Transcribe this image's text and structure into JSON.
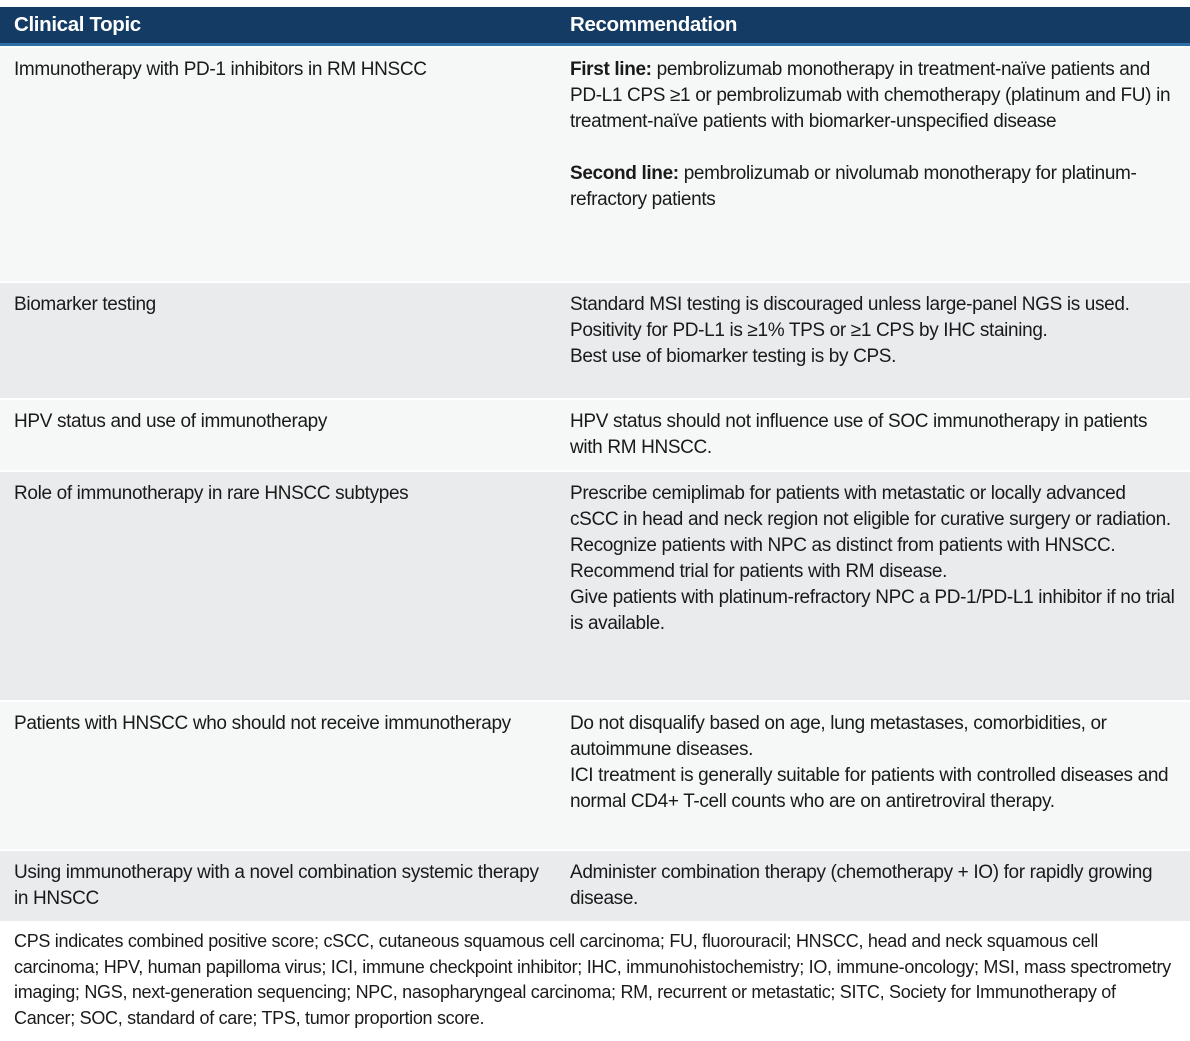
{
  "colors": {
    "header_bg": "#143b64",
    "header_accent": "#2e6ea6",
    "header_text": "#ffffff",
    "row_light": "#f6f7f7",
    "row_gray": "#e9ebec",
    "text": "#1a1a1a"
  },
  "table": {
    "headers": {
      "topic": "Clinical Topic",
      "recommendation": "Recommendation"
    },
    "rows": [
      {
        "topic": "Immunotherapy with PD-1 inhibitors in RM HNSCC",
        "rec": {
          "p1_label": "First line:",
          "p1_text": "pembrolizumab monotherapy in treatment-naïve patients and PD-L1 CPS ≥1 or pembrolizumab with chemotherapy (platinum and FU) in treatment-naïve patients with biomarker-unspecified disease",
          "p2_label": "Second line:",
          "p2_text": "pembrolizumab or nivolumab monotherapy for platinum-refractory patients"
        }
      },
      {
        "topic": "Biomarker testing",
        "rec": {
          "lines": [
            "Standard MSI testing is discouraged unless large-panel NGS is used.",
            "Positivity for PD-L1 is ≥1% TPS or ≥1 CPS by IHC staining.",
            "Best use of biomarker testing is by CPS."
          ]
        }
      },
      {
        "topic": "HPV status and use of immunotherapy",
        "rec": {
          "lines": [
            "HPV status should not influence use of SOC immunotherapy in patients with RM HNSCC."
          ]
        }
      },
      {
        "topic": "Role of immunotherapy in rare HNSCC subtypes",
        "rec": {
          "lines": [
            "Prescribe cemiplimab for patients with metastatic or locally advanced cSCC in head and neck region not eligible for curative surgery or radiation.",
            "Recognize patients with NPC as distinct from patients with HNSCC.",
            "Recommend trial for patients with RM disease.",
            "Give patients with platinum-refractory NPC a PD-1/PD-L1 inhibitor if no trial is available."
          ]
        }
      },
      {
        "topic": "Patients with HNSCC who should not receive immunotherapy",
        "rec": {
          "lines": [
            "Do not disqualify based on age, lung metastases, comorbidities, or autoimmune diseases.",
            "ICI treatment is generally suitable for patients with controlled diseases and normal CD4+ T-cell counts who are on antiretroviral therapy."
          ]
        }
      },
      {
        "topic": "Using immunotherapy with a novel combination systemic therapy in HNSCC",
        "rec": {
          "lines": [
            "Administer combination therapy (chemotherapy + IO) for rapidly growing disease."
          ]
        }
      }
    ]
  },
  "footnote": "CPS indicates combined positive score; cSCC, cutaneous squamous cell carcinoma; FU, fluorouracil; HNSCC, head and neck squamous cell carcinoma; HPV, human papilloma virus; ICI, immune checkpoint inhibitor; IHC, immunohistochemistry; IO, immune-oncology; MSI, mass spectrometry imaging; NGS, next-generation sequencing; NPC, nasopharyngeal carcinoma; RM, recurrent or metastatic; SITC, Society for Immunotherapy of Cancer; SOC, standard of care; TPS, tumor proportion score."
}
